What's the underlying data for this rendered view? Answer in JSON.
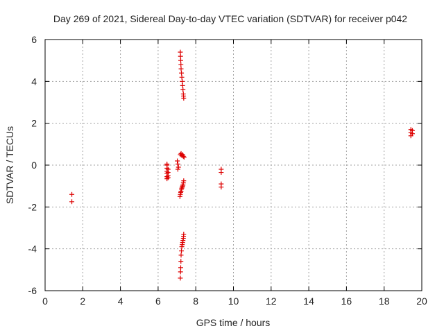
{
  "chart_data": {
    "type": "scatter",
    "title": "Day 269 of 2021, Sidereal Day-to-day VTEC variation (SDTVAR) for receiver p042",
    "xlabel": "GPS time / hours",
    "ylabel": "SDTVAR / TECUs",
    "xlim": [
      0,
      20
    ],
    "ylim": [
      -6,
      6
    ],
    "xticks": [
      0,
      2,
      4,
      6,
      8,
      10,
      12,
      14,
      16,
      18,
      20
    ],
    "yticks": [
      -6,
      -4,
      -2,
      0,
      2,
      4,
      6
    ],
    "grid": true,
    "marker": "+",
    "color": "#dd0000",
    "series": [
      {
        "name": "SDTVAR",
        "x": [
          1.42,
          1.42,
          6.47,
          6.47,
          6.47,
          6.47,
          6.47,
          6.47,
          6.47,
          6.53,
          6.53,
          6.53,
          6.53,
          7.02,
          7.05,
          7.08,
          7.05,
          7.18,
          7.22,
          7.26,
          7.3,
          7.34,
          7.38,
          7.16,
          7.18,
          7.2,
          7.22,
          7.24,
          7.26,
          7.28,
          7.3,
          7.32,
          7.34,
          7.36,
          7.18,
          7.19,
          7.2,
          7.21,
          7.22,
          7.24,
          7.26,
          7.28,
          7.3,
          7.32,
          7.34,
          7.35,
          7.36,
          7.18,
          7.19,
          7.2,
          7.21,
          7.22,
          7.24,
          7.26,
          7.28,
          7.3,
          7.32,
          7.34,
          7.35,
          7.36,
          9.35,
          9.35,
          9.35,
          9.35,
          19.42,
          19.42,
          19.42,
          19.5,
          19.5
        ],
        "y": [
          -1.4,
          -1.75,
          0.0,
          -0.15,
          -0.3,
          -0.4,
          -0.55,
          -0.65,
          0.05,
          -0.2,
          -0.35,
          -0.5,
          -0.6,
          0.2,
          0.05,
          -0.1,
          -0.2,
          0.5,
          0.55,
          0.45,
          0.5,
          0.42,
          0.38,
          -1.5,
          -1.4,
          -1.3,
          -1.25,
          -1.15,
          -1.1,
          -1.05,
          -1.0,
          -0.95,
          -0.85,
          -0.75,
          5.4,
          5.2,
          5.0,
          4.8,
          4.6,
          4.4,
          4.2,
          4.0,
          3.8,
          3.6,
          3.4,
          3.3,
          3.2,
          -5.4,
          -5.1,
          -4.9,
          -4.6,
          -4.3,
          -4.1,
          -3.9,
          -3.8,
          -3.7,
          -3.6,
          -3.5,
          -3.4,
          -3.3,
          -0.2,
          -0.35,
          -0.9,
          -1.05,
          1.7,
          1.55,
          1.4,
          1.65,
          1.5
        ]
      }
    ]
  }
}
